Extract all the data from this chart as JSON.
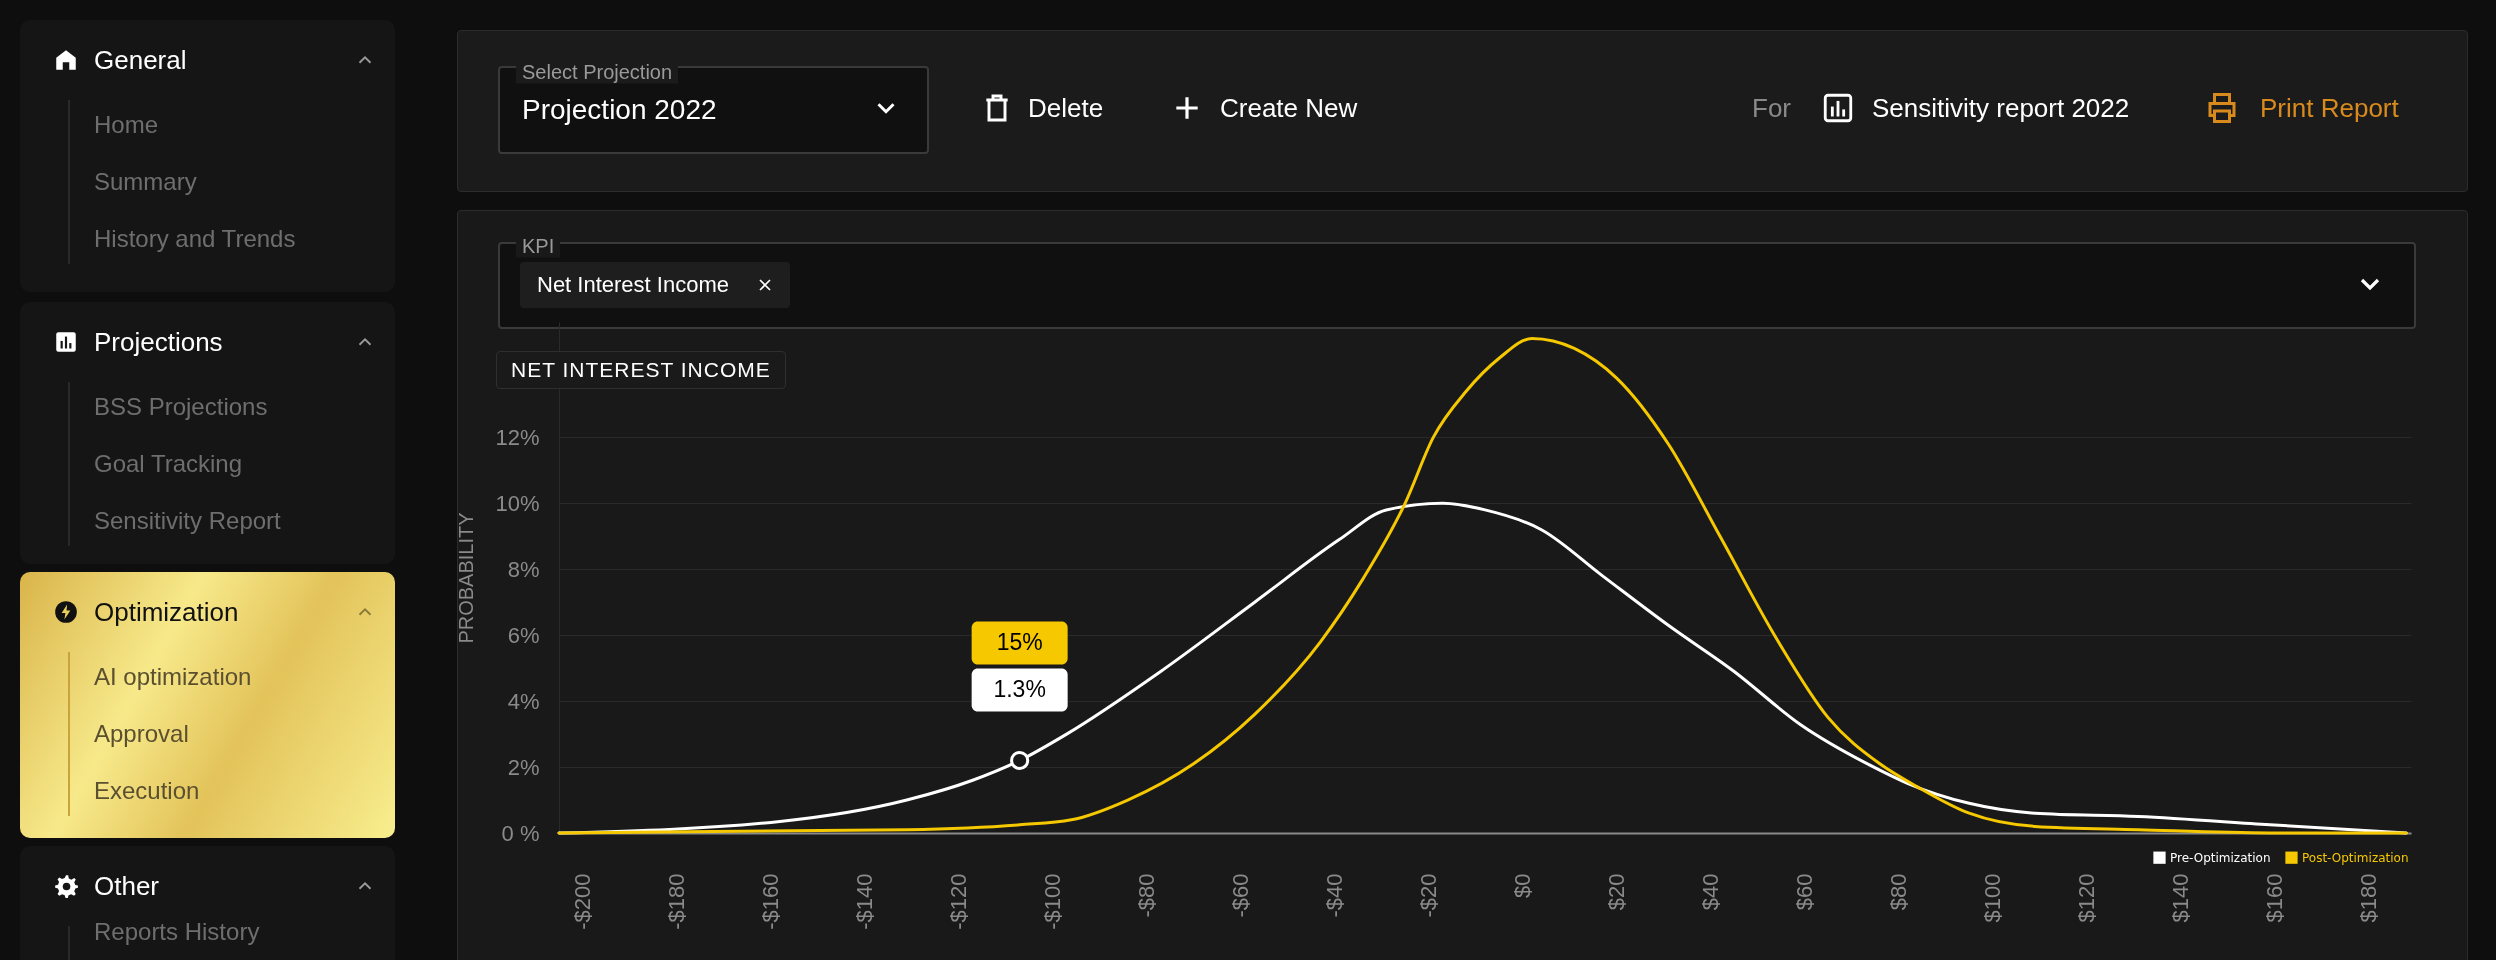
{
  "chart_data": [
    {
      "type": "other",
      "title": "General",
      "annotations": [
        "Home",
        "Summary",
        "History and Trends"
      ]
    },
    {
      "type": "other",
      "title": "Projections",
      "annotations": [
        "BSS Projections",
        "Goal Tracking",
        "Sensitivity Report"
      ]
    },
    {
      "type": "other",
      "title": "Optimization",
      "annotations": [
        "AI optimization",
        "Approval",
        "Execution"
      ]
    },
    {
      "type": "other",
      "title": "Other",
      "annotations": [
        "Reports History"
      ]
    },
    {
      "type": "other",
      "annotations": [
        "Select Projection",
        "Projection 2022",
        "Delete",
        "Create New",
        "For",
        "Sensitivity report 2022",
        "Print Report"
      ]
    },
    {
      "type": "other",
      "annotations": [
        "KPI",
        "Net Interest Income"
      ]
    },
    {
      "type": "line",
      "title": "NET INTEREST INCOME",
      "ylabel": "PROBABILITY",
      "xlim": [
        -205,
        189
      ],
      "ylim": [
        0,
        15.5
      ],
      "xticks": [
        {
          "value": -200,
          "label": "-$200"
        },
        {
          "value": -180,
          "label": "-$180"
        },
        {
          "value": -160,
          "label": "-$160"
        },
        {
          "value": -140,
          "label": "-$140"
        },
        {
          "value": -120,
          "label": "-$120"
        },
        {
          "value": -100,
          "label": "-$100"
        },
        {
          "value": -80,
          "label": "-$80"
        },
        {
          "value": -60,
          "label": "-$60"
        },
        {
          "value": -40,
          "label": "-$40"
        },
        {
          "value": -20,
          "label": "-$20"
        },
        {
          "value": 0,
          "label": "$0"
        },
        {
          "value": 20,
          "label": "$20"
        },
        {
          "value": 40,
          "label": "$40"
        },
        {
          "value": 60,
          "label": "$60"
        },
        {
          "value": 80,
          "label": "$80"
        },
        {
          "value": 100,
          "label": "$100"
        },
        {
          "value": 120,
          "label": "$120"
        },
        {
          "value": 140,
          "label": "$140"
        },
        {
          "value": 160,
          "label": "$160"
        },
        {
          "value": 180,
          "label": "$180"
        }
      ],
      "yticks": [
        {
          "value": 0,
          "label": "0 %"
        },
        {
          "value": 2,
          "label": "2%"
        },
        {
          "value": 4,
          "label": "4%"
        },
        {
          "value": 6,
          "label": "6%"
        },
        {
          "value": 8,
          "label": "8%"
        },
        {
          "value": 10,
          "label": "10%"
        },
        {
          "value": 12,
          "label": "12%"
        }
      ],
      "grid": "y",
      "legend": "bottom right",
      "series": [
        {
          "name": "Pre-Optimization",
          "color": "#ffffff",
          "x": [
            -205,
            -158,
            -131,
            -117,
            -107,
            -97,
            -77,
            -57,
            -39,
            -29,
            -17,
            -8,
            4,
            17,
            31,
            45,
            59,
            74,
            82,
            95,
            109,
            131,
            159,
            188
          ],
          "values": [
            0,
            0.35,
            1.0,
            1.6,
            2.2,
            3.0,
            4.9,
            7.0,
            8.9,
            9.8,
            10.0,
            9.8,
            9.2,
            7.8,
            6.3,
            4.9,
            3.3,
            2.05,
            1.5,
            0.9,
            0.6,
            0.5,
            0.25,
            0
          ]
        },
        {
          "name": "Post-Optimization",
          "color": "#f5c800",
          "x": [
            -205,
            -131,
            -107,
            -96,
            -84,
            -70,
            -57,
            -43,
            -34,
            -25,
            -19,
            -12,
            -5,
            2,
            11,
            20,
            31,
            42,
            54,
            65,
            76,
            84,
            95,
            109,
            131,
            159,
            188
          ],
          "values": [
            0,
            0.1,
            0.25,
            0.4,
            1.0,
            2.1,
            3.6,
            5.8,
            7.7,
            10.0,
            12.0,
            13.4,
            14.4,
            15.0,
            14.7,
            13.8,
            11.8,
            9.0,
            5.9,
            3.5,
            2.1,
            1.4,
            0.6,
            0.2,
            0.1,
            0,
            0
          ]
        }
      ],
      "annotations": [
        "15%",
        {
          "text": "1.3%",
          "x": -107,
          "y": 2.2
        }
      ]
    }
  ]
}
